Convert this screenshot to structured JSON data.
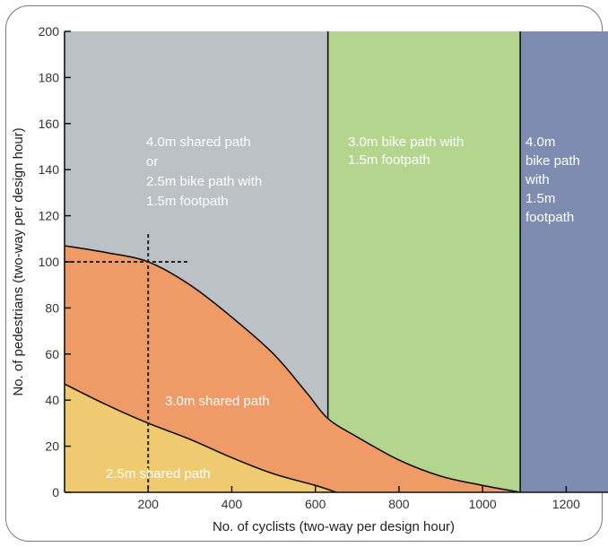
{
  "chart_data": {
    "type": "area",
    "xlabel": "No. of cyclists (two-way per design hour)",
    "ylabel": "No. of pedestrians (two-way per design hour)",
    "xlim": [
      0,
      1300
    ],
    "ylim": [
      0,
      200
    ],
    "x_ticks": [
      200,
      400,
      600,
      800,
      1000,
      1200
    ],
    "y_ticks": [
      0,
      20,
      40,
      60,
      80,
      100,
      120,
      140,
      160,
      180,
      200
    ],
    "boundaries": {
      "lower_curve": [
        [
          0,
          47
        ],
        [
          100,
          38
        ],
        [
          200,
          30
        ],
        [
          300,
          23
        ],
        [
          400,
          15
        ],
        [
          500,
          8
        ],
        [
          600,
          3
        ],
        [
          650,
          0
        ]
      ],
      "upper_curve": [
        [
          0,
          107
        ],
        [
          100,
          104
        ],
        [
          200,
          100
        ],
        [
          300,
          90
        ],
        [
          400,
          76
        ],
        [
          500,
          60
        ],
        [
          580,
          43
        ],
        [
          630,
          32
        ],
        [
          700,
          24
        ],
        [
          800,
          14
        ],
        [
          900,
          7
        ],
        [
          1000,
          3
        ],
        [
          1090,
          0
        ]
      ],
      "vertical_lines": [
        630,
        1090
      ]
    },
    "regions": [
      {
        "name": "grey",
        "color": "#bcc1c6",
        "label_lines": [
          "4.0m shared path",
          "or",
          "2.5m bike path with",
          "1.5m footpath"
        ]
      },
      {
        "name": "green",
        "color": "#b3d58e",
        "label_lines": [
          "3.0m bike path with",
          "1.5m footpath"
        ]
      },
      {
        "name": "blue",
        "color": "#7d8cb0",
        "label_lines": [
          "4.0m",
          "bike path",
          "with",
          "1.5m",
          "footpath"
        ]
      },
      {
        "name": "orange",
        "color": "#ef9b68",
        "label_lines": [
          "3.0m shared path"
        ]
      },
      {
        "name": "yellow",
        "color": "#f0ca70",
        "label_lines": [
          "2.5m shared path"
        ]
      }
    ],
    "example_point": {
      "x": 200,
      "y": 100
    }
  }
}
